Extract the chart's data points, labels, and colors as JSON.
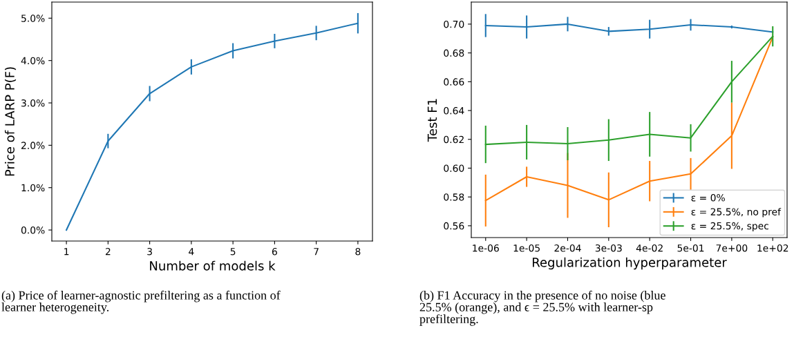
{
  "chart_data": [
    {
      "type": "line",
      "xlabel": "Number of models k",
      "ylabel": "Price of LARP P(F)",
      "x": [
        1,
        2,
        3,
        4,
        5,
        6,
        7,
        8
      ],
      "series": [
        {
          "color": "#1f77b4",
          "values": [
            0,
            2.1,
            3.22,
            3.85,
            4.23,
            4.46,
            4.65,
            4.88
          ],
          "errors": [
            0,
            0.17,
            0.18,
            0.18,
            0.18,
            0.17,
            0.17,
            0.24
          ]
        }
      ],
      "xlim": [
        0.65,
        8.35
      ],
      "xticks": [
        1,
        2,
        3,
        4,
        5,
        6,
        7,
        8
      ],
      "ylim": [
        -0.26,
        5.38
      ],
      "yticks": [
        {
          "value": 0,
          "label": "0.0%"
        },
        {
          "value": 1,
          "label": "1.0%"
        },
        {
          "value": 2,
          "label": "2.0%"
        },
        {
          "value": 3,
          "label": "3.0%"
        },
        {
          "value": 4,
          "label": "4.0%"
        },
        {
          "value": 5,
          "label": "5.0%"
        }
      ],
      "grid": false,
      "legend": false,
      "marker": "none",
      "line_style": "solid",
      "annotations": [
        "(a) Price of learner-agnostic prefiltering as a function of\nlearner heterogeneity."
      ]
    },
    {
      "type": "line",
      "xlabel": "Regularization hyperparameter",
      "ylabel": "Test F1",
      "categories": [
        "1e-06",
        "1e-05",
        "2e-04",
        "3e-03",
        "4e-02",
        "5e-01",
        "7e+00",
        "1e+02"
      ],
      "series": [
        {
          "name": "ε = 0%",
          "color": "#1f77b4",
          "values": [
            0.699,
            0.698,
            0.7,
            0.695,
            0.6965,
            0.6995,
            0.698,
            0.6945
          ],
          "errors": [
            0.008,
            0.008,
            0.005,
            0.003,
            0.0065,
            0.004,
            0.001,
            null
          ]
        },
        {
          "name": "ε = 25.5%, no pref",
          "color": "#ff7f0e",
          "values": [
            0.5775,
            0.594,
            0.588,
            0.578,
            0.591,
            0.596,
            0.6225,
            0.691
          ],
          "errors": [
            0.018,
            0.007,
            0.0225,
            0.019,
            0.014,
            0.011,
            0.023,
            null
          ]
        },
        {
          "name": "ε = 25.5%, spec",
          "color": "#2ca02c",
          "values": [
            0.6165,
            0.618,
            0.617,
            0.6195,
            0.6235,
            0.621,
            0.66,
            0.6915
          ],
          "errors": [
            0.013,
            0.012,
            0.0115,
            0.0145,
            0.0155,
            0.0095,
            0.0145,
            0.007
          ]
        }
      ],
      "ylim": [
        0.5518,
        0.7153
      ],
      "yticks": [
        {
          "value": 0.56,
          "label": "0.56"
        },
        {
          "value": 0.58,
          "label": "0.58"
        },
        {
          "value": 0.6,
          "label": "0.60"
        },
        {
          "value": 0.62,
          "label": "0.62"
        },
        {
          "value": 0.64,
          "label": "0.64"
        },
        {
          "value": 0.66,
          "label": "0.66"
        },
        {
          "value": 0.68,
          "label": "0.68"
        },
        {
          "value": 0.7,
          "label": "0.70"
        }
      ],
      "grid": false,
      "legend": "bottom right",
      "marker": "none",
      "line_style": "solid",
      "annotations": [
        "(b) F1 Accuracy in the presence of no noise (blue\n25.5% (orange), and ϵ = 25.5% with learner-sp\nprefiltering."
      ]
    }
  ]
}
